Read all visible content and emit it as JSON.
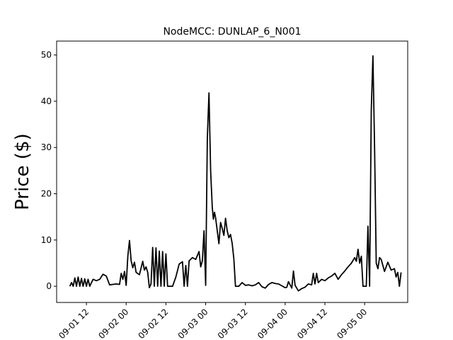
{
  "chart_data": {
    "type": "line",
    "title": "NodeMCC: DUNLAP_6_N001",
    "xlabel": "",
    "ylabel": "Price ($)",
    "x_unit": "datetime",
    "xlim": [
      "09-01 03:00",
      "09-05 13:00"
    ],
    "ylim": [
      -3.5,
      53
    ],
    "grid": false,
    "xticks": [
      {
        "value": "09-01 12:00",
        "label": "09-01 12"
      },
      {
        "value": "09-02 00:00",
        "label": "09-02 00"
      },
      {
        "value": "09-02 12:00",
        "label": "09-02 12"
      },
      {
        "value": "09-03 00:00",
        "label": "09-03 00"
      },
      {
        "value": "09-03 12:00",
        "label": "09-03 12"
      },
      {
        "value": "09-04 00:00",
        "label": "09-04 00"
      },
      {
        "value": "09-04 12:00",
        "label": "09-04 12"
      },
      {
        "value": "09-05 00:00",
        "label": "09-05 00"
      }
    ],
    "yticks": [
      0,
      10,
      20,
      30,
      40,
      50
    ],
    "series": [
      {
        "color": "#000000",
        "points": [
          [
            "09-01 07:00",
            0
          ],
          [
            "09-01 07:30",
            0.8
          ],
          [
            "09-01 08:00",
            0
          ],
          [
            "09-01 08:30",
            1.8
          ],
          [
            "09-01 09:00",
            0
          ],
          [
            "09-01 09:30",
            2.0
          ],
          [
            "09-01 10:00",
            0
          ],
          [
            "09-01 10:30",
            1.7
          ],
          [
            "09-01 11:00",
            0
          ],
          [
            "09-01 11:30",
            1.6
          ],
          [
            "09-01 12:00",
            0
          ],
          [
            "09-01 12:30",
            1.5
          ],
          [
            "09-01 13:00",
            0
          ],
          [
            "09-01 14:00",
            1.5
          ],
          [
            "09-01 15:00",
            1.2
          ],
          [
            "09-01 16:00",
            1.5
          ],
          [
            "09-01 17:00",
            2.6
          ],
          [
            "09-01 18:00",
            2.2
          ],
          [
            "09-01 19:00",
            0.3
          ],
          [
            "09-01 20:00",
            0.4
          ],
          [
            "09-01 21:00",
            0.5
          ],
          [
            "09-01 22:00",
            0.4
          ],
          [
            "09-01 22:30",
            2.8
          ],
          [
            "09-01 23:00",
            1.5
          ],
          [
            "09-01 23:30",
            3.2
          ],
          [
            "09-02 00:00",
            0.2
          ],
          [
            "09-02 00:30",
            6.5
          ],
          [
            "09-02 01:00",
            9.9
          ],
          [
            "09-02 01:30",
            5.5
          ],
          [
            "09-02 02:00",
            4.0
          ],
          [
            "09-02 02:30",
            5.2
          ],
          [
            "09-02 03:00",
            3.0
          ],
          [
            "09-02 04:00",
            2.5
          ],
          [
            "09-02 05:00",
            5.4
          ],
          [
            "09-02 05:30",
            3.5
          ],
          [
            "09-02 06:00",
            4.2
          ],
          [
            "09-02 06:30",
            3.0
          ],
          [
            "09-02 07:00",
            -0.3
          ],
          [
            "09-02 07:30",
            0.5
          ],
          [
            "09-02 08:00",
            8.4
          ],
          [
            "09-02 08:30",
            0
          ],
          [
            "09-02 09:00",
            8.3
          ],
          [
            "09-02 09:30",
            0
          ],
          [
            "09-02 10:00",
            7.6
          ],
          [
            "09-02 10:30",
            0
          ],
          [
            "09-02 11:00",
            7.5
          ],
          [
            "09-02 11:30",
            0
          ],
          [
            "09-02 12:00",
            7.0
          ],
          [
            "09-02 12:30",
            0
          ],
          [
            "09-02 13:00",
            0
          ],
          [
            "09-02 14:00",
            0
          ],
          [
            "09-02 15:00",
            2.0
          ],
          [
            "09-02 16:00",
            4.8
          ],
          [
            "09-02 17:00",
            5.3
          ],
          [
            "09-02 17:30",
            0
          ],
          [
            "09-02 18:00",
            4.5
          ],
          [
            "09-02 18:30",
            0
          ],
          [
            "09-02 19:00",
            5.5
          ],
          [
            "09-02 20:00",
            6.2
          ],
          [
            "09-02 21:00",
            5.8
          ],
          [
            "09-02 22:00",
            7.5
          ],
          [
            "09-02 22:30",
            4.2
          ],
          [
            "09-02 23:00",
            5.5
          ],
          [
            "09-02 23:30",
            12.0
          ],
          [
            "09-03 00:00",
            0.2
          ],
          [
            "09-03 00:30",
            32.0
          ],
          [
            "09-03 01:00",
            41.8
          ],
          [
            "09-03 01:30",
            25.0
          ],
          [
            "09-03 02:00",
            17.0
          ],
          [
            "09-03 02:20",
            14.5
          ],
          [
            "09-03 02:40",
            16.0
          ],
          [
            "09-03 03:00",
            14.8
          ],
          [
            "09-03 04:00",
            9.2
          ],
          [
            "09-03 04:30",
            13.8
          ],
          [
            "09-03 05:00",
            12.5
          ],
          [
            "09-03 05:30",
            11.0
          ],
          [
            "09-03 06:00",
            14.7
          ],
          [
            "09-03 06:30",
            12.0
          ],
          [
            "09-03 07:00",
            10.5
          ],
          [
            "09-03 07:30",
            11.2
          ],
          [
            "09-03 08:00",
            9.3
          ],
          [
            "09-03 08:30",
            6.0
          ],
          [
            "09-03 09:00",
            0
          ],
          [
            "09-03 10:00",
            0
          ],
          [
            "09-03 11:00",
            0.8
          ],
          [
            "09-03 12:00",
            0.2
          ],
          [
            "09-03 13:00",
            0.3
          ],
          [
            "09-03 14:00",
            0.1
          ],
          [
            "09-03 15:00",
            0.3
          ],
          [
            "09-03 16:00",
            0.8
          ],
          [
            "09-03 17:00",
            -0.1
          ],
          [
            "09-03 18:00",
            -0.4
          ],
          [
            "09-03 19:00",
            0.4
          ],
          [
            "09-03 20:00",
            0.8
          ],
          [
            "09-03 21:00",
            0.6
          ],
          [
            "09-03 22:00",
            0.5
          ],
          [
            "09-03 23:00",
            0.1
          ],
          [
            "09-04 00:00",
            -0.3
          ],
          [
            "09-04 00:30",
            -0.2
          ],
          [
            "09-04 01:00",
            1.0
          ],
          [
            "09-04 02:00",
            -0.4
          ],
          [
            "09-04 02:30",
            3.3
          ],
          [
            "09-04 03:00",
            0.2
          ],
          [
            "09-04 04:00",
            -1.0
          ],
          [
            "09-04 05:00",
            -0.5
          ],
          [
            "09-04 06:00",
            -0.2
          ],
          [
            "09-04 07:00",
            0.5
          ],
          [
            "09-04 08:00",
            0.3
          ],
          [
            "09-04 08:30",
            2.8
          ],
          [
            "09-04 09:00",
            0.5
          ],
          [
            "09-04 09:30",
            2.8
          ],
          [
            "09-04 10:00",
            0.8
          ],
          [
            "09-04 11:00",
            1.5
          ],
          [
            "09-04 12:00",
            1.2
          ],
          [
            "09-04 13:00",
            1.8
          ],
          [
            "09-04 14:00",
            2.2
          ],
          [
            "09-04 15:00",
            2.8
          ],
          [
            "09-04 16:00",
            1.5
          ],
          [
            "09-04 17:00",
            2.5
          ],
          [
            "09-04 18:00",
            3.3
          ],
          [
            "09-04 19:00",
            4.2
          ],
          [
            "09-04 20:00",
            5.0
          ],
          [
            "09-04 21:00",
            6.2
          ],
          [
            "09-04 21:30",
            5.4
          ],
          [
            "09-04 22:00",
            8.0
          ],
          [
            "09-04 22:30",
            5.0
          ],
          [
            "09-04 23:00",
            6.5
          ],
          [
            "09-04 23:30",
            0
          ],
          [
            "09-05 00:00",
            0
          ],
          [
            "09-05 00:30",
            0
          ],
          [
            "09-05 01:00",
            13.0
          ],
          [
            "09-05 01:30",
            0
          ],
          [
            "09-05 02:00",
            38.0
          ],
          [
            "09-05 02:30",
            49.8
          ],
          [
            "09-05 03:00",
            30.0
          ],
          [
            "09-05 03:30",
            5.0
          ],
          [
            "09-05 04:00",
            3.8
          ],
          [
            "09-05 04:30",
            6.2
          ],
          [
            "09-05 05:00",
            5.8
          ],
          [
            "09-05 06:00",
            3.2
          ],
          [
            "09-05 07:00",
            5.2
          ],
          [
            "09-05 08:00",
            3.5
          ],
          [
            "09-05 09:00",
            3.8
          ],
          [
            "09-05 09:30",
            2.0
          ],
          [
            "09-05 10:00",
            3.0
          ],
          [
            "09-05 10:30",
            0
          ],
          [
            "09-05 11:00",
            3.0
          ]
        ]
      }
    ]
  }
}
